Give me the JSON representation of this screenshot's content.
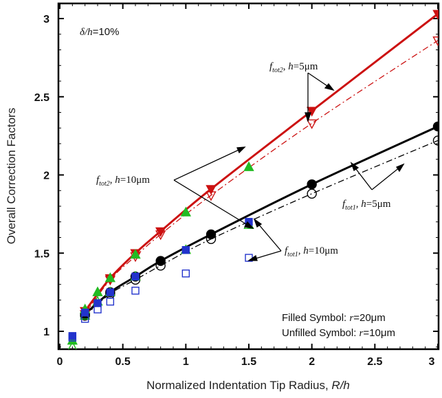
{
  "chart_data": {
    "type": "scatter",
    "xlabel_main": "Normalized Indentation Tip Radius, ",
    "xlabel_var": "R/h",
    "ylabel": "Overall Correction Factors",
    "xlim": [
      0,
      3
    ],
    "ylim": [
      0.87,
      3.1
    ],
    "grid": false,
    "x_ticks": [
      0,
      0.5,
      1,
      1.5,
      2,
      2.5,
      3
    ],
    "x_tick_labels": [
      "0",
      "0.5",
      "1",
      "1.5",
      "2",
      "2.5",
      "3"
    ],
    "y_ticks": [
      1,
      1.5,
      2,
      2.5,
      3
    ],
    "y_tick_labels": [
      "1",
      "1.5",
      "2",
      "2.5",
      "3"
    ],
    "condition_var": "δ/h",
    "condition_val": "=10%",
    "legend_filled_pre": "Filled Symbol: ",
    "legend_filled_var": "r",
    "legend_filled_val": "=20μm",
    "legend_unfilled_pre": "Unfilled Symbol: ",
    "legend_unfilled_var": "r",
    "legend_unfilled_val": "=10μm",
    "annotations": {
      "ftot2_5": {
        "f": "f",
        "sub": "tot2",
        "mid": ", ",
        "h": "h",
        "val": "=5μm"
      },
      "ftot2_10": {
        "f": "f",
        "sub": "tot2",
        "mid": ", ",
        "h": "h",
        "val": "=10μm"
      },
      "ftot1_5": {
        "f": "f",
        "sub": "tot1",
        "mid": ", ",
        "h": "h",
        "val": "=5μm"
      },
      "ftot1_10": {
        "f": "f",
        "sub": "tot1",
        "mid": ", ",
        "h": "h",
        "val": "=10μm"
      }
    },
    "colors": {
      "red": "#cc1111",
      "black": "#000000",
      "green": "#22bb22",
      "blue": "#2233cc"
    },
    "curves": [
      {
        "key": "ftot2_h5_r20",
        "color": "#cc1111",
        "dash": "none",
        "width": 3,
        "x": [
          0.2,
          0.4,
          0.6,
          0.8,
          1.2,
          2.0,
          3.0
        ],
        "y": [
          1.13,
          1.34,
          1.5,
          1.64,
          1.91,
          2.41,
          3.03
        ]
      },
      {
        "key": "ftot2_h5_r10",
        "color": "#cc1111",
        "dash": "9,4,2,4",
        "width": 1.3,
        "x": [
          0.2,
          0.4,
          0.6,
          0.8,
          1.2,
          2.0,
          3.0
        ],
        "y": [
          1.11,
          1.33,
          1.48,
          1.62,
          1.87,
          2.33,
          2.86
        ]
      },
      {
        "key": "ftot1_h5_r20",
        "color": "#000000",
        "dash": "none",
        "width": 3,
        "x": [
          0.2,
          0.4,
          0.6,
          0.8,
          1.2,
          2.0,
          3.0
        ],
        "y": [
          1.11,
          1.25,
          1.35,
          1.45,
          1.62,
          1.94,
          2.31
        ]
      },
      {
        "key": "ftot1_h5_r10",
        "color": "#000000",
        "dash": "9,4,2,4",
        "width": 1.3,
        "x": [
          0.2,
          0.4,
          0.6,
          0.8,
          1.2,
          2.0,
          3.0
        ],
        "y": [
          1.1,
          1.24,
          1.33,
          1.42,
          1.59,
          1.88,
          2.22
        ]
      }
    ],
    "points": [
      {
        "shape": "tri-down",
        "filled": true,
        "color": "#cc1111",
        "x": [
          0.2,
          0.4,
          0.6,
          0.8,
          1.2,
          2.0,
          3.0
        ],
        "y": [
          1.13,
          1.34,
          1.5,
          1.64,
          1.91,
          2.41,
          3.03
        ]
      },
      {
        "shape": "tri-down",
        "filled": false,
        "color": "#cc1111",
        "x": [
          0.2,
          0.4,
          0.6,
          0.8,
          1.2,
          2.0,
          3.0
        ],
        "y": [
          1.11,
          1.33,
          1.48,
          1.62,
          1.87,
          2.33,
          2.86
        ]
      },
      {
        "shape": "circle",
        "filled": true,
        "color": "#000000",
        "x": [
          0.2,
          0.4,
          0.6,
          0.8,
          1.2,
          2.0,
          3.0
        ],
        "y": [
          1.11,
          1.25,
          1.35,
          1.45,
          1.62,
          1.94,
          2.31
        ]
      },
      {
        "shape": "circle",
        "filled": false,
        "color": "#000000",
        "x": [
          0.2,
          0.4,
          0.6,
          0.8,
          1.2,
          2.0,
          3.0
        ],
        "y": [
          1.1,
          1.24,
          1.33,
          1.42,
          1.59,
          1.88,
          2.22
        ]
      },
      {
        "shape": "tri-up",
        "filled": true,
        "color": "#22bb22",
        "x": [
          0.1,
          0.2,
          0.3,
          0.4,
          0.6,
          1.0,
          1.5
        ],
        "y": [
          0.94,
          1.14,
          1.25,
          1.34,
          1.49,
          1.76,
          2.05
        ]
      },
      {
        "shape": "tri-up",
        "filled": false,
        "color": "#22bb22",
        "x": [
          0.1,
          0.2,
          0.3,
          0.4,
          0.6,
          1.0,
          1.5
        ],
        "y": [
          0.9,
          1.1,
          1.19,
          1.25,
          1.35,
          1.52,
          1.68
        ]
      },
      {
        "shape": "square",
        "filled": true,
        "color": "#2233cc",
        "x": [
          0.1,
          0.2,
          0.3,
          0.4,
          0.6,
          1.0,
          1.5
        ],
        "y": [
          0.97,
          1.12,
          1.18,
          1.25,
          1.35,
          1.52,
          1.7
        ]
      },
      {
        "shape": "square",
        "filled": false,
        "color": "#2233cc",
        "x": [
          0.1,
          0.2,
          0.3,
          0.4,
          0.6,
          1.0,
          1.5
        ],
        "y": [
          0.96,
          1.08,
          1.14,
          1.19,
          1.26,
          1.37,
          1.47
        ]
      }
    ]
  }
}
